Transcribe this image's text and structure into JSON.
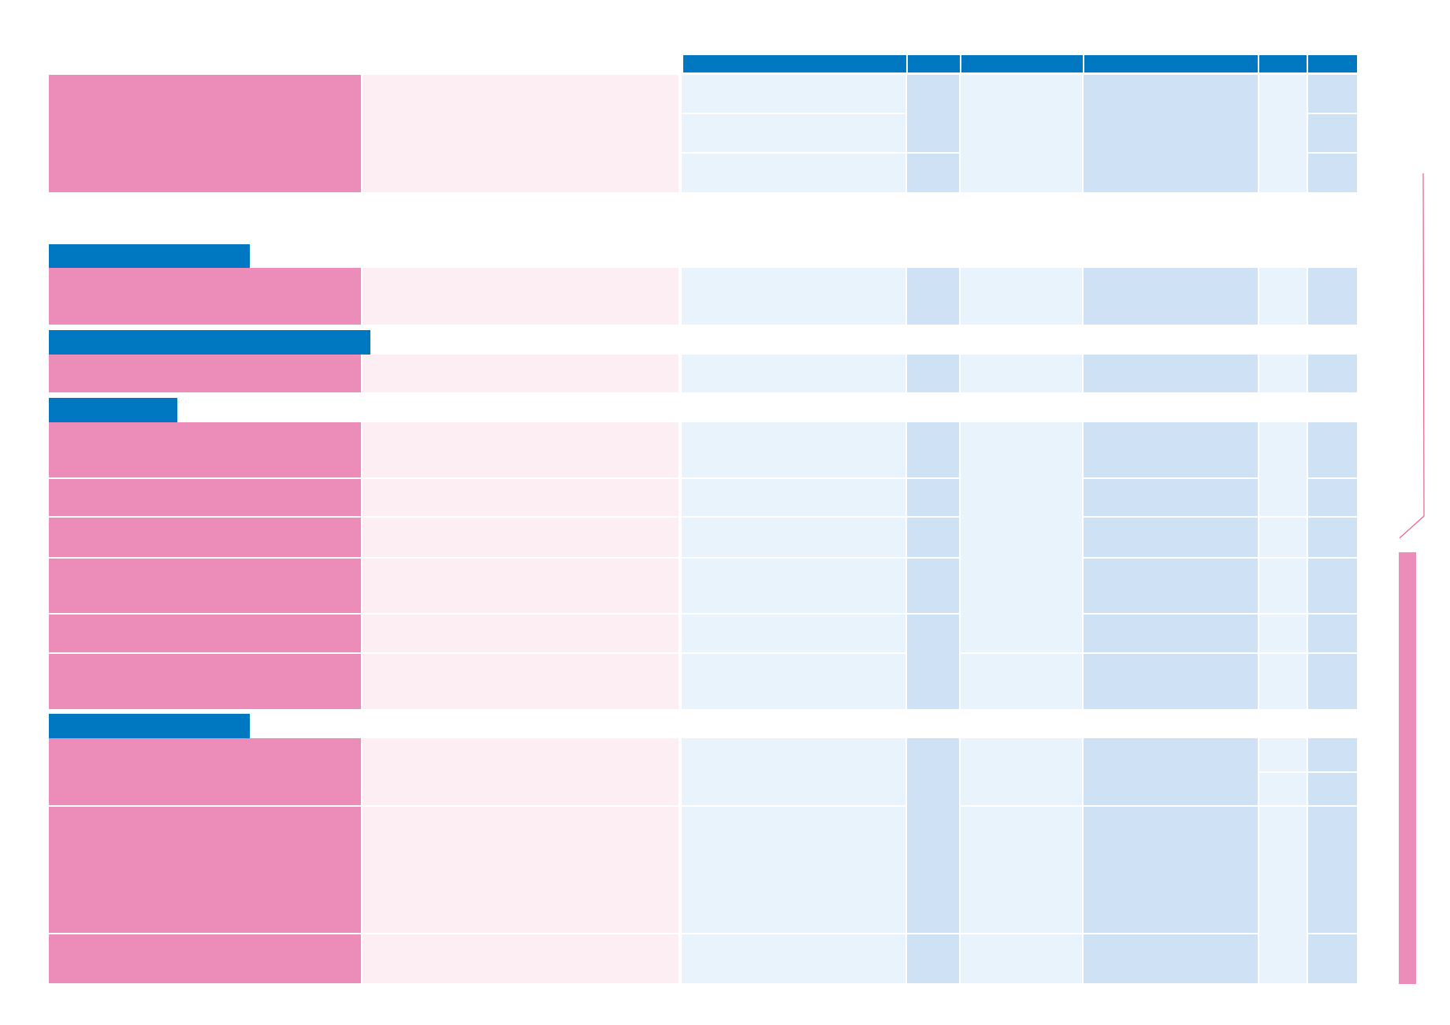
{
  "colors": {
    "header_blue": "#0078c1",
    "category_pink": "#ec8cb8",
    "description_pink": "#fdeef3",
    "cell_light_blue": "#e8f3fc",
    "cell_mid_blue": "#cfe2f5",
    "connector_pink": "#e0608f"
  },
  "column_headers": [
    "",
    "",
    "",
    "",
    "",
    ""
  ],
  "section_headers": [
    "",
    "",
    "",
    ""
  ],
  "side_bar_label": ""
}
